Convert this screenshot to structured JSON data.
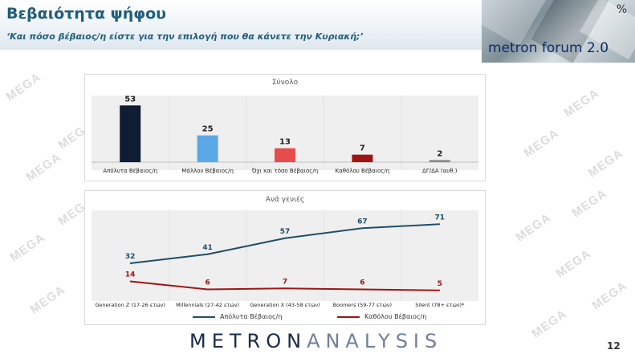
{
  "header": {
    "title": "Βεβαιότητα ψήφου",
    "subtitle": "‘Και πόσο βέβαιος/η είστε για την επιλογή που θα κάνετε την Κυριακή;’"
  },
  "logo": {
    "text": "metron forum 2.0",
    "symbol": "%"
  },
  "watermark": "MEGA",
  "footer": {
    "brand_part1": "METRON",
    "brand_part2": "ANALYSIS",
    "page_number": "12"
  },
  "colors": {
    "navy": "#0f1c33",
    "light_blue": "#5aa9e6",
    "red": "#e74c4c",
    "dark_red": "#a01414",
    "gray": "#8a8a8a",
    "teal_line": "#1f4e6b",
    "red_line": "#a01414"
  },
  "chart_data": [
    {
      "type": "bar",
      "title": "Σύνολο",
      "categories": [
        "Απόλυτα Βέβαιος/η",
        "Μάλλον Βέβαιος/η",
        "Όχι και τόσο Βέβαιος/η",
        "Καθόλου Βέβαιος/η",
        "ΔΓ/ΔΑ (αυθ.)"
      ],
      "values": [
        53,
        25,
        13,
        7,
        2
      ],
      "bar_colors": [
        "#0f1c33",
        "#5aa9e6",
        "#e74c4c",
        "#a01414",
        "#8a8a8a"
      ],
      "ylim": [
        0,
        60
      ],
      "grid": true
    },
    {
      "type": "line",
      "title": "Ανά γενιές",
      "categories": [
        "Generation Z (17-26 ετών)",
        "Millennials (27-42 ετών)",
        "Generation X (43-58 ετών)",
        "Boomers (59-77 ετών)",
        "Silent (78+ ετών)*"
      ],
      "series": [
        {
          "name": "Απόλυτα Βέβαιος/η",
          "values": [
            32,
            41,
            57,
            67,
            71
          ],
          "color": "#1f4e6b"
        },
        {
          "name": "Καθόλου Βέβαιος/η",
          "values": [
            14,
            6,
            7,
            6,
            5
          ],
          "color": "#a01414"
        }
      ],
      "ylim": [
        0,
        80
      ],
      "legend": "bottom",
      "grid": true
    }
  ]
}
